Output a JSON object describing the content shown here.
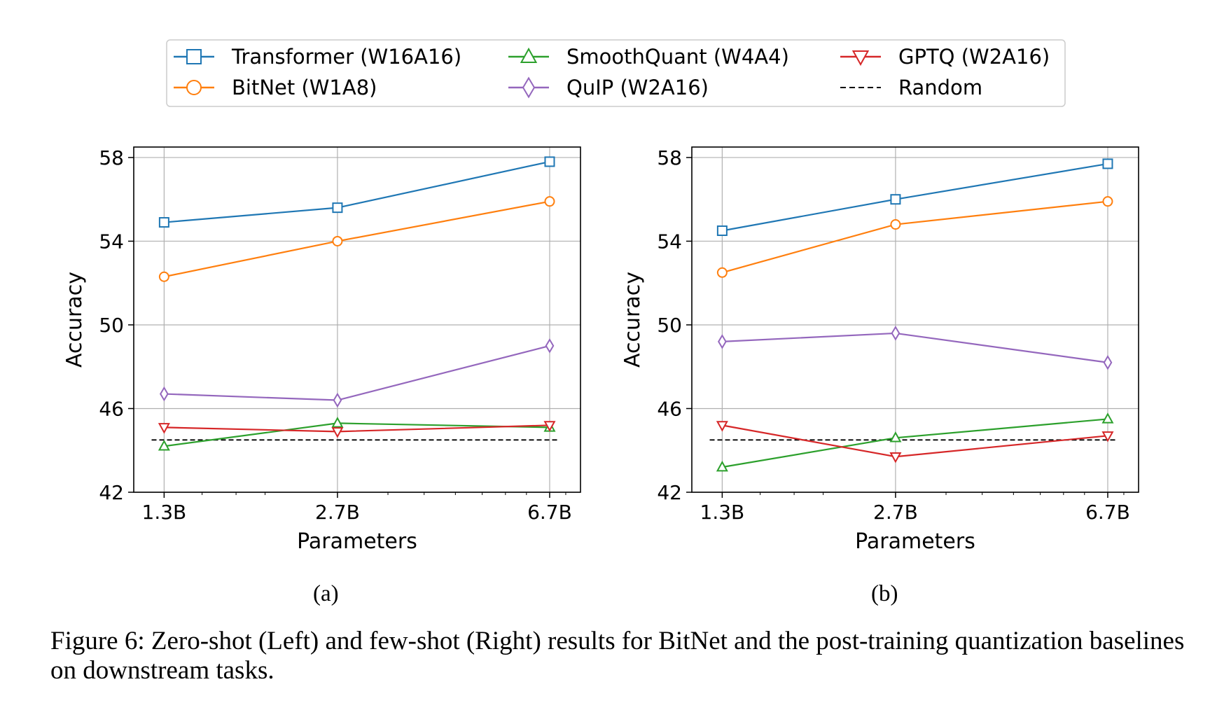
{
  "legend": [
    {
      "label": "Transformer (W16A16)",
      "color": "#1f77b4",
      "marker": "square"
    },
    {
      "label": "SmoothQuant (W4A4)",
      "color": "#2ca02c",
      "marker": "triangle-up"
    },
    {
      "label": "GPTQ (W2A16)",
      "color": "#d62728",
      "marker": "triangle-down"
    },
    {
      "label": "BitNet (W1A8)",
      "color": "#ff7f0e",
      "marker": "circle"
    },
    {
      "label": "QuIP (W2A16)",
      "color": "#9467bd",
      "marker": "diamond"
    },
    {
      "label": "Random",
      "color": "#000000",
      "marker": "dashed"
    }
  ],
  "chart_data": [
    {
      "type": "line",
      "panel_label": "(a)",
      "xlabel": "Parameters",
      "ylabel": "Accuracy",
      "x_scale": "log",
      "categories": [
        "1.3B",
        "2.7B",
        "6.7B"
      ],
      "ylim": [
        42,
        58.5
      ],
      "yticks": [
        42,
        46,
        50,
        54,
        58
      ],
      "grid": true,
      "random_baseline": 44.5,
      "series": [
        {
          "name": "Transformer (W16A16)",
          "values": [
            54.9,
            55.6,
            57.8
          ]
        },
        {
          "name": "BitNet (W1A8)",
          "values": [
            52.3,
            54.0,
            55.9
          ]
        },
        {
          "name": "QuIP (W2A16)",
          "values": [
            46.7,
            46.4,
            49.0
          ]
        },
        {
          "name": "SmoothQuant (W4A4)",
          "values": [
            44.2,
            45.3,
            45.1
          ]
        },
        {
          "name": "GPTQ (W2A16)",
          "values": [
            45.1,
            44.9,
            45.2
          ]
        }
      ]
    },
    {
      "type": "line",
      "panel_label": "(b)",
      "xlabel": "Parameters",
      "ylabel": "Accuracy",
      "x_scale": "log",
      "categories": [
        "1.3B",
        "2.7B",
        "6.7B"
      ],
      "ylim": [
        42,
        58.5
      ],
      "yticks": [
        42,
        46,
        50,
        54,
        58
      ],
      "grid": true,
      "random_baseline": 44.5,
      "series": [
        {
          "name": "Transformer (W16A16)",
          "values": [
            54.5,
            56.0,
            57.7
          ]
        },
        {
          "name": "BitNet (W1A8)",
          "values": [
            52.5,
            54.8,
            55.9
          ]
        },
        {
          "name": "QuIP (W2A16)",
          "values": [
            49.2,
            49.6,
            48.2
          ]
        },
        {
          "name": "SmoothQuant (W4A4)",
          "values": [
            43.2,
            44.6,
            45.5
          ]
        },
        {
          "name": "GPTQ (W2A16)",
          "values": [
            45.2,
            43.7,
            44.7
          ]
        }
      ]
    }
  ],
  "caption": "Figure 6: Zero-shot (Left) and few-shot (Right) results for BitNet and the post-training quantization baselines on downstream tasks."
}
